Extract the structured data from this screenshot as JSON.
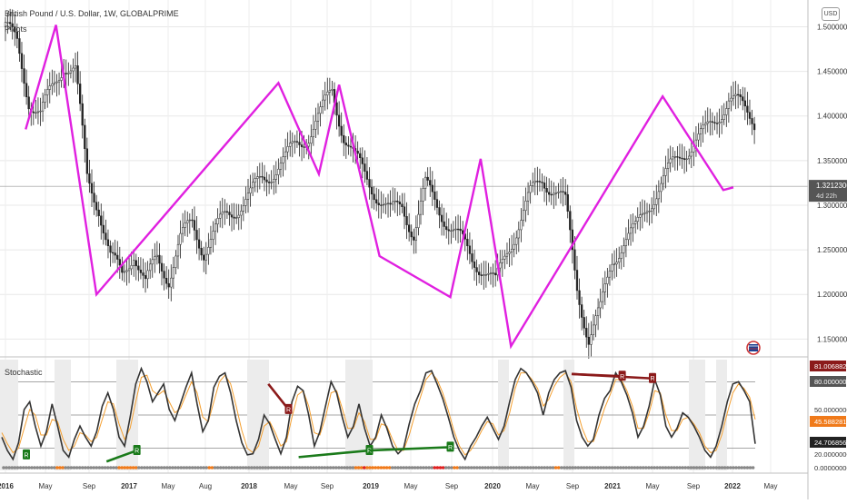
{
  "header": {
    "symbol_line": "British Pound / U.S. Dollar, 1W, GLOBALPRIME",
    "indicator": "Pivots",
    "currency_button": "USD"
  },
  "chart_data": [
    {
      "type": "line",
      "title": "British Pound / U.S. Dollar, 1W, GLOBALPRIME",
      "subtitle": "Pivots",
      "x_tick_labels": [
        "2016",
        "May",
        "Sep",
        "2017",
        "May",
        "Aug",
        "2018",
        "May",
        "Sep",
        "2019",
        "May",
        "Sep",
        "2020",
        "May",
        "Sep",
        "2021",
        "May",
        "Sep",
        "2022",
        "May"
      ],
      "y_tick_labels": [
        "1.50000000",
        "1.45000000",
        "1.40000000",
        "1.35000000",
        "1.30000000",
        "1.25000000",
        "1.20000000",
        "1.15000000"
      ],
      "ylim": [
        1.13,
        1.53
      ],
      "grid": true,
      "series": [
        {
          "name": "Pivots",
          "color": "#e020e0",
          "x": [
            "2016-03",
            "2016-06",
            "2016-10",
            "2018-04",
            "2018-08",
            "2018-10",
            "2019-02",
            "2019-09",
            "2019-12",
            "2020-03",
            "2021-06",
            "2021-12",
            "2022-01"
          ],
          "values": [
            1.385,
            1.502,
            1.2,
            1.437,
            1.335,
            1.435,
            1.243,
            1.197,
            1.352,
            1.142,
            1.422,
            1.317,
            1.32
          ]
        }
      ],
      "price_bars_close": [
        1.5,
        1.48,
        1.42,
        1.4,
        1.43,
        1.46,
        1.45,
        1.33,
        1.3,
        1.24,
        1.22,
        1.25,
        1.21,
        1.24,
        1.22,
        1.26,
        1.28,
        1.25,
        1.27,
        1.29,
        1.3,
        1.31,
        1.33,
        1.34,
        1.35,
        1.37,
        1.38,
        1.4,
        1.43,
        1.38,
        1.35,
        1.33,
        1.31,
        1.29,
        1.3,
        1.27,
        1.32,
        1.3,
        1.28,
        1.26,
        1.24,
        1.23,
        1.21,
        1.25,
        1.28,
        1.31,
        1.33,
        1.32,
        1.3,
        1.21,
        1.15,
        1.18,
        1.24,
        1.26,
        1.27,
        1.3,
        1.32,
        1.34,
        1.36,
        1.37,
        1.38,
        1.4,
        1.42,
        1.41,
        1.4,
        1.38,
        1.37,
        1.36,
        1.34,
        1.33,
        1.35,
        1.36,
        1.35,
        1.32
      ],
      "last_price": "1.32123000",
      "countdown": "4d 22h"
    },
    {
      "type": "line",
      "title": "Stochastic",
      "y_tick_labels": [
        "81.00688271",
        "80.00000000",
        "50.00000000",
        "45.58828118",
        "24.70685671",
        "20.00000000",
        "0.00000000"
      ],
      "ylim": [
        0,
        100
      ],
      "levels": [
        80,
        50,
        20
      ],
      "series": [
        {
          "name": "%K",
          "color": "#333333",
          "values": [
            30,
            18,
            10,
            25,
            55,
            62,
            40,
            22,
            35,
            60,
            40,
            18,
            12,
            28,
            40,
            30,
            22,
            35,
            58,
            70,
            55,
            30,
            22,
            48,
            78,
            92,
            80,
            62,
            70,
            78,
            55,
            45,
            60,
            75,
            88,
            60,
            35,
            45,
            75,
            85,
            88,
            70,
            45,
            25,
            14,
            15,
            28,
            50,
            42,
            28,
            15,
            30,
            62,
            76,
            72,
            50,
            22,
            35,
            58,
            80,
            70,
            48,
            30,
            40,
            60,
            38,
            22,
            30,
            50,
            38,
            22,
            15,
            20,
            42,
            60,
            72,
            88,
            90,
            78,
            65,
            48,
            30,
            18,
            10,
            22,
            30,
            40,
            48,
            38,
            28,
            40,
            62,
            82,
            92,
            88,
            80,
            70,
            50,
            70,
            82,
            88,
            90,
            75,
            45,
            30,
            22,
            28,
            50,
            65,
            72,
            88,
            80,
            68,
            52,
            30,
            40,
            58,
            82,
            68,
            40,
            30,
            38,
            52,
            48,
            40,
            30,
            18,
            12,
            22,
            40,
            62,
            78,
            80,
            72,
            62,
            24
          ]
        },
        {
          "name": "%D",
          "color": "#f5a030",
          "values": [
            34,
            24,
            16,
            20,
            38,
            55,
            50,
            32,
            32,
            46,
            44,
            28,
            18,
            22,
            34,
            32,
            26,
            30,
            46,
            62,
            60,
            42,
            28,
            38,
            62,
            84,
            86,
            72,
            68,
            72,
            62,
            52,
            56,
            68,
            80,
            70,
            48,
            44,
            62,
            80,
            86,
            78,
            58,
            36,
            20,
            16,
            22,
            40,
            44,
            34,
            22,
            26,
            48,
            68,
            72,
            58,
            34,
            32,
            48,
            70,
            72,
            56,
            38,
            38,
            52,
            44,
            28,
            28,
            42,
            40,
            28,
            18,
            18,
            32,
            50,
            66,
            82,
            88,
            82,
            70,
            54,
            36,
            22,
            14,
            18,
            26,
            36,
            44,
            42,
            32,
            36,
            52,
            74,
            88,
            88,
            82,
            74,
            58,
            64,
            76,
            84,
            88,
            80,
            56,
            38,
            26,
            26,
            40,
            56,
            68,
            82,
            82,
            72,
            58,
            38,
            38,
            52,
            72,
            70,
            50,
            36,
            36,
            46,
            48,
            42,
            34,
            22,
            16,
            18,
            32,
            52,
            70,
            78,
            74,
            66,
            46
          ]
        }
      ],
      "divergence_lines": [
        {
          "label": "R",
          "color": "#8b1a1a",
          "from": {
            "x": "2018-03",
            "y": 78
          },
          "to": {
            "x": "2018-05",
            "y": 55
          }
        },
        {
          "label": "R",
          "color": "#8b1a1a",
          "from": {
            "x": "2020-09",
            "y": 87
          },
          "to": {
            "x": "2021-05",
            "y": 83
          }
        },
        {
          "label": "R",
          "color": "#8b1a1a",
          "from": {
            "x": "2020-09",
            "y": 87
          },
          "to": {
            "x": "2021-02",
            "y": 85
          }
        },
        {
          "label": "R",
          "color": "#1a7a1a",
          "from": {
            "x": "2016-11",
            "y": 8
          },
          "to": {
            "x": "2017-02",
            "y": 18
          }
        },
        {
          "label": "R",
          "color": "#1a7a1a",
          "from": {
            "x": "2018-06",
            "y": 12
          },
          "to": {
            "x": "2019-01",
            "y": 18
          }
        },
        {
          "label": "R",
          "color": "#1a7a1a",
          "from": {
            "x": "2019-01",
            "y": 18
          },
          "to": {
            "x": "2019-09",
            "y": 21
          }
        }
      ]
    }
  ],
  "status_colors": {
    "bull": "#1a7a1a",
    "bear": "#8b1a1a",
    "pivot": "#e020e0"
  }
}
